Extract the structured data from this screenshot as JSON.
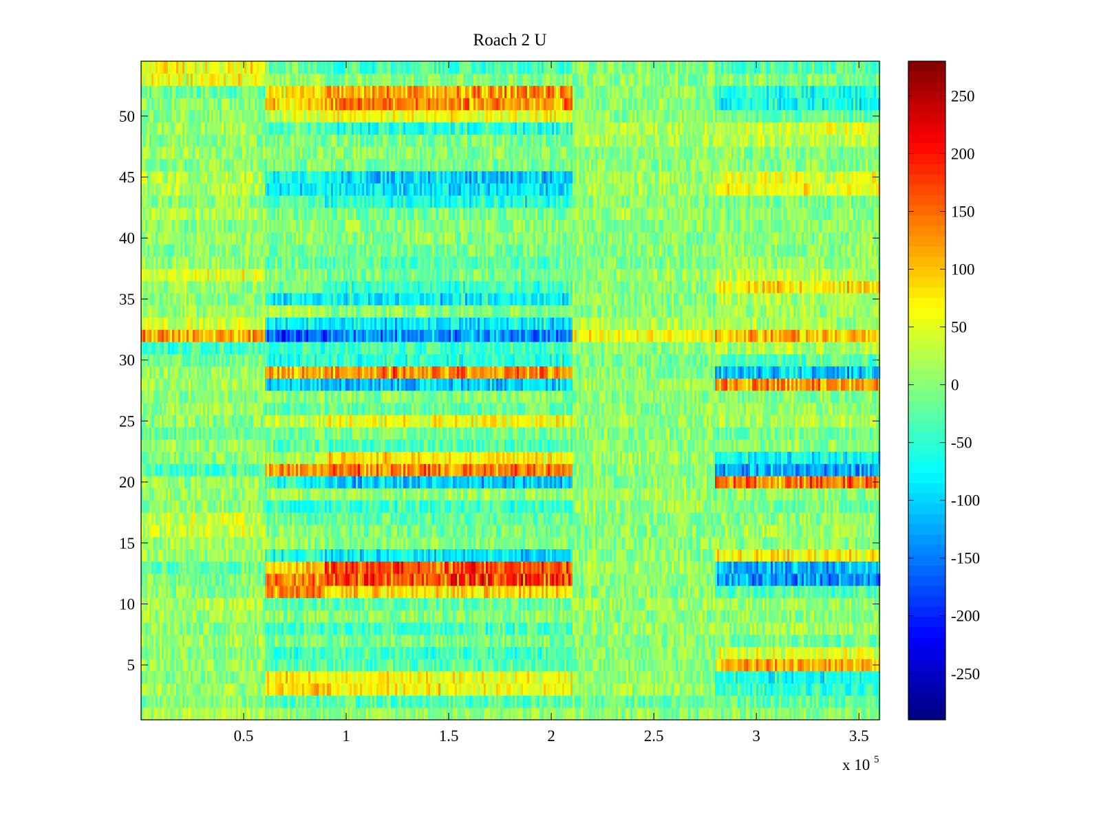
{
  "chart_data": {
    "type": "heatmap",
    "title": "Roach 2 U",
    "xlabel": "",
    "ylabel": "",
    "x_multiplier_label": "x 10",
    "x_multiplier_exponent": "5",
    "xlim": [
      0,
      3.6
    ],
    "ylim": [
      0.5,
      54.5
    ],
    "x_ticks": [
      0.5,
      1,
      1.5,
      2,
      2.5,
      3,
      3.5
    ],
    "x_tick_labels": [
      "0.5",
      "1",
      "1.5",
      "2",
      "2.5",
      "3",
      "3.5"
    ],
    "y_ticks": [
      5,
      10,
      15,
      20,
      25,
      30,
      35,
      40,
      45,
      50
    ],
    "y_tick_labels": [
      "5",
      "10",
      "15",
      "20",
      "25",
      "30",
      "35",
      "40",
      "45",
      "50"
    ],
    "rows": 54,
    "colormap": "jet",
    "clim": [
      -290,
      280
    ],
    "colorbar_ticks": [
      250,
      200,
      150,
      100,
      50,
      0,
      -50,
      -100,
      -150,
      -200,
      -250
    ],
    "colorbar_tick_labels": [
      "250",
      "200",
      "150",
      "100",
      "50",
      "0",
      "-50",
      "-100",
      "-150",
      "-200",
      "-250"
    ],
    "segments_x": [
      0,
      0.605,
      0.9,
      2.1,
      2.8,
      3.6
    ],
    "baseline": 0,
    "noise_amplitude": 40,
    "row_segment_means": [
      {
        "row": 1,
        "means": [
          20,
          0,
          0,
          0,
          0
        ]
      },
      {
        "row": 2,
        "means": [
          0,
          -30,
          -30,
          -20,
          -20
        ]
      },
      {
        "row": 3,
        "means": [
          10,
          90,
          70,
          10,
          -50
        ]
      },
      {
        "row": 4,
        "means": [
          0,
          80,
          60,
          10,
          -70
        ]
      },
      {
        "row": 5,
        "means": [
          10,
          -30,
          -30,
          0,
          110
        ]
      },
      {
        "row": 6,
        "means": [
          0,
          -40,
          -40,
          0,
          50
        ]
      },
      {
        "row": 7,
        "means": [
          10,
          -10,
          -10,
          0,
          -10
        ]
      },
      {
        "row": 8,
        "means": [
          0,
          -40,
          -40,
          10,
          10
        ]
      },
      {
        "row": 9,
        "means": [
          10,
          0,
          0,
          0,
          0
        ]
      },
      {
        "row": 10,
        "means": [
          20,
          -20,
          -20,
          10,
          10
        ]
      },
      {
        "row": 11,
        "means": [
          0,
          120,
          80,
          0,
          -30
        ]
      },
      {
        "row": 12,
        "means": [
          -10,
          140,
          170,
          0,
          -130
        ]
      },
      {
        "row": 13,
        "means": [
          -20,
          90,
          160,
          10,
          -110
        ]
      },
      {
        "row": 14,
        "means": [
          10,
          -60,
          -90,
          0,
          70
        ]
      },
      {
        "row": 15,
        "means": [
          10,
          0,
          0,
          0,
          0
        ]
      },
      {
        "row": 16,
        "means": [
          40,
          0,
          -10,
          0,
          10
        ]
      },
      {
        "row": 17,
        "means": [
          40,
          -20,
          -20,
          0,
          0
        ]
      },
      {
        "row": 18,
        "means": [
          0,
          -50,
          -40,
          10,
          -10
        ]
      },
      {
        "row": 19,
        "means": [
          10,
          10,
          10,
          10,
          0
        ]
      },
      {
        "row": 20,
        "means": [
          10,
          -70,
          -110,
          0,
          140
        ]
      },
      {
        "row": 21,
        "means": [
          -40,
          120,
          140,
          0,
          -120
        ]
      },
      {
        "row": 22,
        "means": [
          0,
          10,
          80,
          10,
          -70
        ]
      },
      {
        "row": 23,
        "means": [
          10,
          -30,
          -30,
          0,
          0
        ]
      },
      {
        "row": 24,
        "means": [
          -20,
          -10,
          -10,
          0,
          -10
        ]
      },
      {
        "row": 25,
        "means": [
          0,
          30,
          60,
          10,
          20
        ]
      },
      {
        "row": 26,
        "means": [
          10,
          -20,
          -20,
          0,
          10
        ]
      },
      {
        "row": 27,
        "means": [
          0,
          0,
          0,
          0,
          0
        ]
      },
      {
        "row": 28,
        "means": [
          10,
          -90,
          -110,
          10,
          120
        ]
      },
      {
        "row": 29,
        "means": [
          10,
          110,
          130,
          0,
          -110
        ]
      },
      {
        "row": 30,
        "means": [
          -10,
          -50,
          -50,
          -10,
          -30
        ]
      },
      {
        "row": 31,
        "means": [
          -40,
          -40,
          -40,
          0,
          20
        ]
      },
      {
        "row": 32,
        "means": [
          110,
          -160,
          -140,
          60,
          100
        ]
      },
      {
        "row": 33,
        "means": [
          40,
          -80,
          -90,
          20,
          20
        ]
      },
      {
        "row": 34,
        "means": [
          10,
          30,
          0,
          0,
          10
        ]
      },
      {
        "row": 35,
        "means": [
          0,
          -80,
          -80,
          0,
          20
        ]
      },
      {
        "row": 36,
        "means": [
          10,
          -20,
          -40,
          0,
          80
        ]
      },
      {
        "row": 37,
        "means": [
          50,
          0,
          -10,
          10,
          30
        ]
      },
      {
        "row": 38,
        "means": [
          10,
          -20,
          -30,
          0,
          10
        ]
      },
      {
        "row": 39,
        "means": [
          0,
          -10,
          -10,
          0,
          0
        ]
      },
      {
        "row": 40,
        "means": [
          10,
          0,
          0,
          0,
          0
        ]
      },
      {
        "row": 41,
        "means": [
          0,
          10,
          0,
          0,
          0
        ]
      },
      {
        "row": 42,
        "means": [
          20,
          -10,
          -10,
          10,
          0
        ]
      },
      {
        "row": 43,
        "means": [
          0,
          -30,
          -60,
          0,
          -10
        ]
      },
      {
        "row": 44,
        "means": [
          20,
          -80,
          -90,
          10,
          60
        ]
      },
      {
        "row": 45,
        "means": [
          20,
          -60,
          -100,
          10,
          50
        ]
      },
      {
        "row": 46,
        "means": [
          0,
          -10,
          -10,
          0,
          0
        ]
      },
      {
        "row": 47,
        "means": [
          10,
          0,
          0,
          0,
          0
        ]
      },
      {
        "row": 48,
        "means": [
          0,
          -10,
          -10,
          20,
          30
        ]
      },
      {
        "row": 49,
        "means": [
          10,
          -30,
          -60,
          20,
          40
        ]
      },
      {
        "row": 50,
        "means": [
          0,
          40,
          60,
          0,
          -20
        ]
      },
      {
        "row": 51,
        "means": [
          0,
          90,
          130,
          0,
          -70
        ]
      },
      {
        "row": 52,
        "means": [
          -20,
          80,
          120,
          0,
          -60
        ]
      },
      {
        "row": 53,
        "means": [
          60,
          10,
          0,
          0,
          0
        ]
      },
      {
        "row": 54,
        "means": [
          60,
          -20,
          -40,
          0,
          -30
        ]
      }
    ]
  }
}
